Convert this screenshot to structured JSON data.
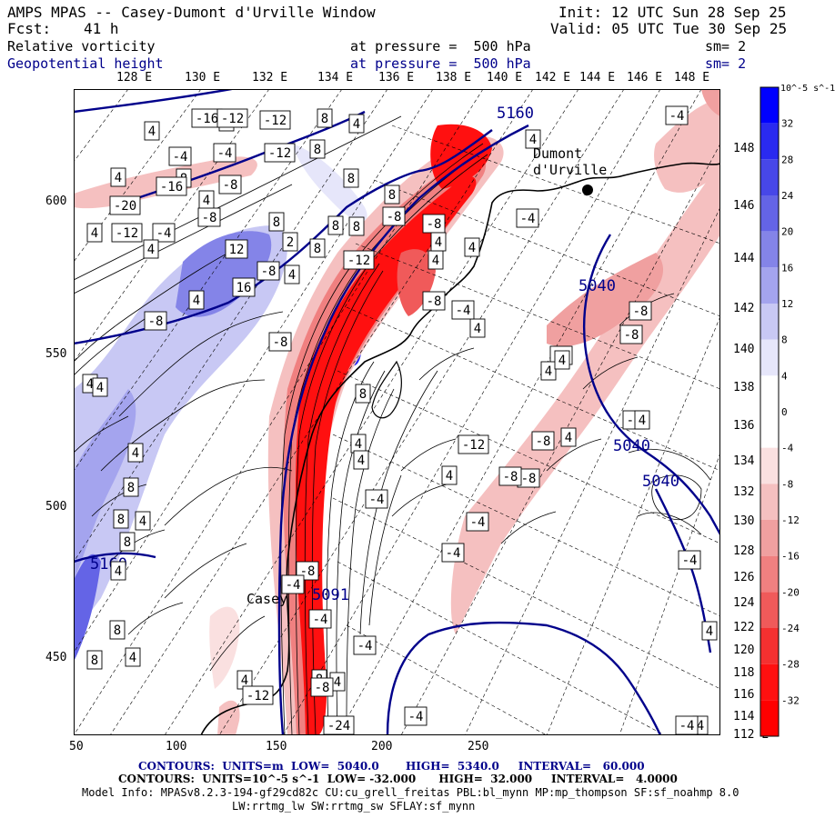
{
  "header": {
    "title": "AMPS MPAS -- Casey-Dumont d'Urville Window",
    "init": "Init: 12 UTC Sun 28 Sep 25",
    "fcst_label": "Fcst:",
    "fcst_value": "41 h",
    "valid": "Valid: 05 UTC Tue 30 Sep 25",
    "field1_name": "Relative vorticity",
    "field1_level": "at pressure =  500 hPa",
    "field1_sm": "sm= 2",
    "field2_name": "Geopotential height",
    "field2_level": "at pressure =  500 hPa",
    "field2_sm": "sm= 2"
  },
  "top_lon_labels": [
    "128 E",
    "130 E",
    "132 E",
    "134 E",
    "136 E",
    "138 E",
    "140 E",
    "142 E",
    "144 E",
    "146 E",
    "148 E"
  ],
  "right_lon_labels": [
    "148 E",
    "146 E",
    "144 E",
    "142 E",
    "140 E",
    "138 E",
    "136 E",
    "134 E",
    "132 E",
    "130 E",
    "128 E",
    "126 E",
    "124 E",
    "122 E",
    "120 E",
    "118 E",
    "116 E",
    "114 E",
    "112 E"
  ],
  "x_ticks": [
    "50",
    "100",
    "150",
    "200",
    "250"
  ],
  "y_ticks": [
    "600",
    "550",
    "500",
    "450"
  ],
  "colorbar": {
    "unit_label": "10^-5 s^-1",
    "labels": [
      "32",
      "28",
      "24",
      "20",
      "16",
      "12",
      "8",
      "4",
      "0",
      "-4",
      "-8",
      "-12",
      "-16",
      "-20",
      "-24",
      "-28",
      "-32"
    ],
    "colors": [
      "#0000ff",
      "#2a2af0",
      "#4747e8",
      "#6464e6",
      "#8484e8",
      "#a4a4ee",
      "#c8c8f4",
      "#e6e6fa",
      "#ffffff",
      "#ffffff",
      "#fae0e0",
      "#f5c0c0",
      "#f0a0a0",
      "#f08080",
      "#f05a5a",
      "#f53030",
      "#ff1010",
      "#ff0000"
    ]
  },
  "map": {
    "place_casey": "Casey",
    "place_dumont_1": "Dumont",
    "place_dumont_2": "d'Urville",
    "height_labels": [
      "5160",
      "5040",
      "5040",
      "5040",
      "5160",
      "5091"
    ]
  },
  "footer": {
    "contours1": "CONTOURS:  UNITS=m  LOW=  5040.0       HIGH=  5340.0     INTERVAL=   60.000",
    "contours2": "CONTOURS:  UNITS=10^-5 s^-1  LOW= -32.000      HIGH=  32.000     INTERVAL=   4.0000",
    "model_info": "Model Info: MPASv8.2.3-194-gf29cd82c CU:cu_grell_freitas PBL:bl_mynn MP:mp_thompson SF:sf_noahmp 8.0",
    "model_info2": "LW:rrtmg_lw SW:rrtmg_sw SFLAY:sf_mynn"
  },
  "vort_box_labels": [
    "4",
    "-16",
    "4",
    "-12",
    "8",
    "4",
    "-4",
    "-12",
    "-4",
    "-12",
    "8",
    "4",
    "8",
    "-16",
    "-8",
    "8",
    "4",
    "4",
    "-20",
    "-4",
    "-8",
    "-12",
    "8",
    "12",
    "2",
    "8",
    "-8",
    "-12",
    "4",
    "4",
    "16",
    "4",
    "8",
    "8",
    "-8",
    "8",
    "-8",
    "4",
    "4",
    "-8",
    "4",
    "8",
    "-4",
    "-4",
    "-4",
    "-4",
    "4",
    "4",
    "4",
    "4",
    "-8",
    "-8",
    "4",
    "-8",
    "-8",
    "-8",
    "-12",
    "4",
    "8",
    "4",
    "-8",
    "-8",
    "4",
    "-4",
    "4",
    "8",
    "8",
    "4",
    "4",
    "-8",
    "-4",
    "-4",
    "8",
    "-4",
    "4",
    "8",
    "4",
    "-8",
    "-12",
    "8",
    "4",
    "-4",
    "4",
    "4",
    "-4",
    "-4",
    "-4",
    "4",
    "-4",
    "4",
    "4",
    "-4",
    "-24"
  ]
}
